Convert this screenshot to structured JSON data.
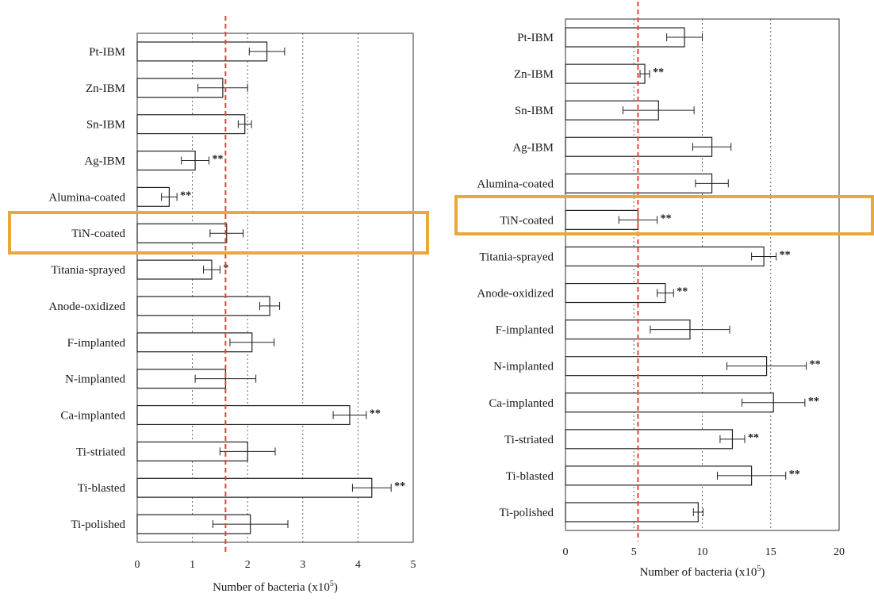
{
  "colors": {
    "highlight": "#E8A93A",
    "reference_line": "#E8413A",
    "bar_fill": "#ffffff",
    "bar_stroke": "#222222"
  },
  "chart_data": [
    {
      "type": "bar",
      "orientation": "horizontal",
      "xlabel": "Number of bacteria (x10^5)",
      "xlabel_base": "Number of bacteria (x10",
      "xlabel_exp": "5",
      "xlabel_tail": ")",
      "xlim": [
        0,
        5
      ],
      "xticks": [
        "0",
        "1",
        "2",
        "3",
        "4",
        "5"
      ],
      "grid": "dotted vertical lines at 1, 2, 3, 4",
      "reference_line": 1.6,
      "highlighted_category": "TiN-coated",
      "categories": [
        "Pt-IBM",
        "Zn-IBM",
        "Sn-IBM",
        "Ag-IBM",
        "Alumina-coated",
        "TiN-coated",
        "Titania-sprayed",
        "Anode-oxidized",
        "F-implanted",
        "N-implanted",
        "Ca-implanted",
        "Ti-striated",
        "Ti-blasted",
        "Ti-polished"
      ],
      "values": [
        2.35,
        1.55,
        1.95,
        1.05,
        0.58,
        1.62,
        1.35,
        2.4,
        2.08,
        1.6,
        3.85,
        2.0,
        4.25,
        2.05
      ],
      "errors": [
        0.32,
        0.45,
        0.12,
        0.25,
        0.14,
        0.3,
        0.15,
        0.18,
        0.4,
        0.55,
        0.3,
        0.5,
        0.35,
        0.68
      ],
      "significance": [
        "",
        "",
        "",
        "**",
        "**",
        "",
        "*",
        "",
        "",
        "",
        "**",
        "",
        "**",
        ""
      ]
    },
    {
      "type": "bar",
      "orientation": "horizontal",
      "xlabel": "Number of bacteria (x10^5)",
      "xlabel_base": "Number of bacteria (x10",
      "xlabel_exp": "5",
      "xlabel_tail": ")",
      "xlim": [
        0,
        20
      ],
      "xticks": [
        "0",
        "5",
        "10",
        "15",
        "20"
      ],
      "grid": "dotted vertical lines at 5, 10, 15",
      "reference_line": 5.3,
      "highlighted_category": "TiN-coated",
      "categories": [
        "Pt-IBM",
        "Zn-IBM",
        "Sn-IBM",
        "Ag-IBM",
        "Alumina-coated",
        "TiN-coated",
        "Titania-sprayed",
        "Anode-oxidized",
        "F-implanted",
        "N-implanted",
        "Ca-implanted",
        "Ti-striated",
        "Ti-blasted",
        "Ti-polished"
      ],
      "values": [
        8.7,
        5.8,
        6.8,
        10.7,
        10.7,
        5.3,
        14.5,
        7.3,
        9.1,
        14.7,
        15.2,
        12.2,
        13.6,
        9.7
      ],
      "errors": [
        1.3,
        0.35,
        2.6,
        1.4,
        1.2,
        1.4,
        0.9,
        0.6,
        2.9,
        2.9,
        2.3,
        0.9,
        2.5,
        0.35
      ],
      "significance": [
        "",
        "**",
        "",
        "",
        "",
        "**",
        "**",
        "**",
        "",
        "**",
        "**",
        "**",
        "**",
        ""
      ]
    }
  ]
}
